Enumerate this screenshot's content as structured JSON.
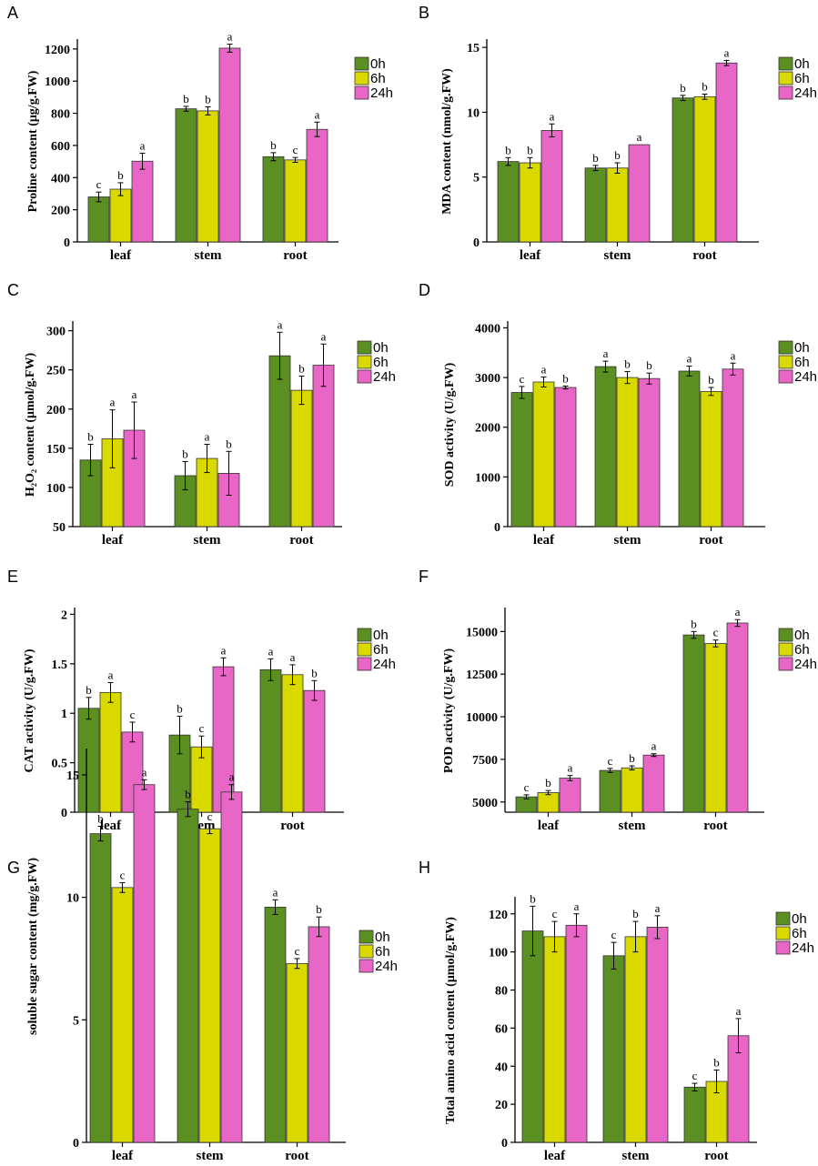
{
  "colors": {
    "0h": "#5b8f22",
    "6h": "#d9d900",
    "24h": "#e866c6"
  },
  "legend": [
    "0h",
    "6h",
    "24h"
  ],
  "chart_data": [
    {
      "panel": "A",
      "type": "bar",
      "ylabel": "Proline content (μg/g.FW)",
      "categories": [
        "leaf",
        "stem",
        "root"
      ],
      "ylim": [
        0,
        1250
      ],
      "yticks": [
        0,
        200,
        400,
        600,
        800,
        1000,
        1200
      ],
      "series": [
        {
          "name": "0h",
          "values": [
            280,
            828,
            530
          ],
          "errors": [
            30,
            15,
            25
          ],
          "letters": [
            "c",
            "b",
            "b"
          ]
        },
        {
          "name": "6h",
          "values": [
            328,
            815,
            510
          ],
          "errors": [
            40,
            25,
            15
          ],
          "letters": [
            "b",
            "b",
            "c"
          ]
        },
        {
          "name": "24h",
          "values": [
            502,
            1205,
            700
          ],
          "errors": [
            50,
            25,
            45
          ],
          "letters": [
            "a",
            "a",
            "a"
          ]
        }
      ]
    },
    {
      "panel": "B",
      "type": "bar",
      "ylabel": "MDA content (nmol/g.FW)",
      "categories": [
        "leaf",
        "stem",
        "root"
      ],
      "ylim": [
        0,
        15.5
      ],
      "yticks": [
        0,
        5,
        10,
        15
      ],
      "series": [
        {
          "name": "0h",
          "values": [
            6.2,
            5.7,
            11.1
          ],
          "errors": [
            0.3,
            0.2,
            0.2
          ],
          "letters": [
            "b",
            "b",
            "b"
          ]
        },
        {
          "name": "6h",
          "values": [
            6.1,
            5.7,
            11.2
          ],
          "errors": [
            0.4,
            0.4,
            0.2
          ],
          "letters": [
            "b",
            "b",
            "b"
          ]
        },
        {
          "name": "24h",
          "values": [
            8.6,
            7.5,
            13.8
          ],
          "errors": [
            0.5,
            0.0,
            0.2
          ],
          "letters": [
            "a",
            "a",
            "a"
          ]
        }
      ]
    },
    {
      "panel": "C",
      "type": "bar",
      "ylabel": "H₂O₂ content (μmol/g.FW)",
      "categories": [
        "leaf",
        "stem",
        "root"
      ],
      "ylim": [
        50,
        310
      ],
      "yticks": [
        50,
        100,
        150,
        200,
        250,
        300
      ],
      "series": [
        {
          "name": "0h",
          "values": [
            135,
            115,
            268
          ],
          "errors": [
            20,
            18,
            30
          ],
          "letters": [
            "b",
            "b",
            "a"
          ]
        },
        {
          "name": "6h",
          "values": [
            162,
            137,
            224
          ],
          "errors": [
            37,
            18,
            18
          ],
          "letters": [
            "a",
            "a",
            "b"
          ]
        },
        {
          "name": "24h",
          "values": [
            173,
            118,
            256
          ],
          "errors": [
            36,
            28,
            27
          ],
          "letters": [
            "a",
            "b",
            "a"
          ]
        }
      ]
    },
    {
      "panel": "D",
      "type": "bar",
      "ylabel": "SOD activity (U/g.FW)",
      "categories": [
        "leaf",
        "stem",
        "root"
      ],
      "ylim": [
        0,
        4100
      ],
      "yticks": [
        0,
        1000,
        2000,
        3000,
        4000
      ],
      "series": [
        {
          "name": "0h",
          "values": [
            2700,
            3220,
            3130
          ],
          "errors": [
            120,
            110,
            100
          ],
          "letters": [
            "c",
            "a",
            "a"
          ]
        },
        {
          "name": "6h",
          "values": [
            2910,
            3000,
            2720
          ],
          "errors": [
            100,
            120,
            80
          ],
          "letters": [
            "a",
            "b",
            "b"
          ]
        },
        {
          "name": "24h",
          "values": [
            2800,
            2980,
            3170
          ],
          "errors": [
            30,
            110,
            120
          ],
          "letters": [
            "b",
            "b",
            "a"
          ]
        }
      ]
    },
    {
      "panel": "E",
      "type": "bar",
      "ylabel": "CAT activity (U/g.FW)",
      "categories": [
        "leaf",
        "stem",
        "root"
      ],
      "ylim": [
        0,
        2.05
      ],
      "yticks": [
        0,
        0.5,
        1.0,
        1.5,
        2.0
      ],
      "series": [
        {
          "name": "0h",
          "values": [
            1.05,
            0.78,
            1.44
          ],
          "errors": [
            0.11,
            0.19,
            0.11
          ],
          "letters": [
            "b",
            "b",
            "a"
          ]
        },
        {
          "name": "6h",
          "values": [
            1.21,
            0.66,
            1.39
          ],
          "errors": [
            0.1,
            0.11,
            0.1
          ],
          "letters": [
            "a",
            "c",
            "a"
          ]
        },
        {
          "name": "24h",
          "values": [
            0.81,
            1.47,
            1.23
          ],
          "errors": [
            0.1,
            0.09,
            0.1
          ],
          "letters": [
            "c",
            "a",
            "b"
          ]
        }
      ]
    },
    {
      "panel": "F",
      "type": "bar",
      "ylabel": "POD activity (U/g.FW)",
      "categories": [
        "leaf",
        "stem",
        "root"
      ],
      "ylim": [
        4400,
        16300
      ],
      "yticks": [
        5000,
        7500,
        10000,
        12500,
        15000
      ],
      "series": [
        {
          "name": "0h",
          "values": [
            5300,
            6850,
            14800
          ],
          "errors": [
            120,
            120,
            200
          ],
          "letters": [
            "c",
            "c",
            "b"
          ]
        },
        {
          "name": "6h",
          "values": [
            5550,
            7000,
            14300
          ],
          "errors": [
            120,
            120,
            200
          ],
          "letters": [
            "b",
            "b",
            "c"
          ]
        },
        {
          "name": "24h",
          "values": [
            6400,
            7750,
            15500
          ],
          "errors": [
            150,
            80,
            200
          ],
          "letters": [
            "a",
            "a",
            "a"
          ]
        }
      ]
    },
    {
      "panel": "G",
      "type": "bar",
      "ylabel": "soluble sugar content (mg/g.FW)",
      "categories": [
        "leaf",
        "stem",
        "root"
      ],
      "ylim": [
        0,
        16
      ],
      "yticks": [
        0,
        5,
        10,
        15
      ],
      "series": [
        {
          "name": "0h",
          "values": [
            12.6,
            13.6,
            9.6
          ],
          "errors": [
            0.3,
            0.3,
            0.3
          ],
          "letters": [
            "b",
            "b",
            "a"
          ]
        },
        {
          "name": "6h",
          "values": [
            10.4,
            12.8,
            7.3
          ],
          "errors": [
            0.2,
            0.2,
            0.2
          ],
          "letters": [
            "c",
            "c",
            "c"
          ]
        },
        {
          "name": "24h",
          "values": [
            14.6,
            14.3,
            8.8
          ],
          "errors": [
            0.2,
            0.3,
            0.4
          ],
          "letters": [
            "a",
            "a",
            "b"
          ]
        }
      ]
    },
    {
      "panel": "H",
      "type": "bar",
      "ylabel": "Total amino acid content (μmol/g.FW)",
      "categories": [
        "leaf",
        "stem",
        "root"
      ],
      "ylim": [
        0,
        128
      ],
      "yticks": [
        0,
        20,
        40,
        60,
        80,
        100,
        120
      ],
      "series": [
        {
          "name": "0h",
          "values": [
            111,
            98,
            29
          ],
          "errors": [
            13,
            7,
            2
          ],
          "letters": [
            "b",
            "c",
            "c"
          ]
        },
        {
          "name": "6h",
          "values": [
            108,
            108,
            32
          ],
          "errors": [
            8,
            8,
            6
          ],
          "letters": [
            "c",
            "b",
            "b"
          ]
        },
        {
          "name": "24h",
          "values": [
            114,
            113,
            56
          ],
          "errors": [
            6,
            6,
            9
          ],
          "letters": [
            "a",
            "a",
            "a"
          ]
        }
      ]
    }
  ]
}
